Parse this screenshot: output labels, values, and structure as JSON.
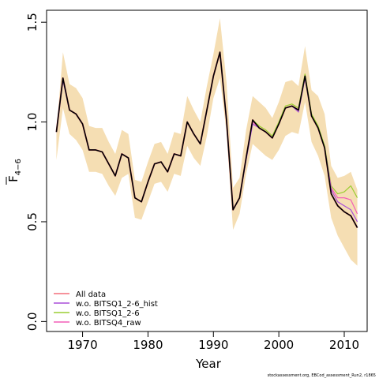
{
  "chart_data": {
    "type": "line",
    "xlabel": "Year",
    "ylabel_main": "F",
    "ylabel_sub": "4−6",
    "xlim": [
      1964.5,
      2013.5
    ],
    "ylim": [
      -0.05,
      1.56
    ],
    "x_ticks": [
      1970,
      1980,
      1990,
      2000,
      2010
    ],
    "y_ticks": [
      0.0,
      0.5,
      1.0,
      1.5
    ],
    "x_tick_labels": [
      "1970",
      "1980",
      "1990",
      "2000",
      "2010"
    ],
    "y_tick_labels": [
      "0.0",
      "0.5",
      "1.0",
      "1.5"
    ],
    "footnote": "stockassessment.org, EBCod_assessment_Run2, r1865",
    "x": [
      1966,
      1967,
      1968,
      1969,
      1970,
      1971,
      1972,
      1973,
      1974,
      1975,
      1976,
      1977,
      1978,
      1979,
      1980,
      1981,
      1982,
      1983,
      1984,
      1985,
      1986,
      1987,
      1988,
      1989,
      1990,
      1991,
      1992,
      1993,
      1994,
      1995,
      1996,
      1997,
      1998,
      1999,
      2000,
      2001,
      2002,
      2003,
      2004,
      2005,
      2006,
      2007,
      2008,
      2009,
      2010,
      2011,
      2012
    ],
    "band": {
      "color": "#f5deb3",
      "upper": [
        0.95,
        1.35,
        1.19,
        1.17,
        1.12,
        0.98,
        0.97,
        0.97,
        0.9,
        0.84,
        0.96,
        0.94,
        0.71,
        0.7,
        0.8,
        0.89,
        0.9,
        0.84,
        0.95,
        0.94,
        1.13,
        1.06,
        1.0,
        1.18,
        1.34,
        1.52,
        1.2,
        0.67,
        0.72,
        0.96,
        1.13,
        1.1,
        1.07,
        1.02,
        1.1,
        1.2,
        1.21,
        1.18,
        1.38,
        1.16,
        1.13,
        1.04,
        0.78,
        0.72,
        0.73,
        0.75,
        0.66
      ],
      "lower": [
        0.81,
        1.07,
        0.94,
        0.91,
        0.86,
        0.75,
        0.75,
        0.74,
        0.68,
        0.63,
        0.72,
        0.74,
        0.52,
        0.51,
        0.6,
        0.69,
        0.7,
        0.65,
        0.74,
        0.73,
        0.88,
        0.82,
        0.78,
        0.93,
        1.12,
        1.22,
        0.95,
        0.46,
        0.54,
        0.74,
        0.89,
        0.86,
        0.83,
        0.81,
        0.86,
        0.93,
        0.95,
        0.94,
        1.1,
        0.9,
        0.83,
        0.73,
        0.52,
        0.43,
        0.37,
        0.31,
        0.28
      ]
    },
    "series": [
      {
        "name": "All data",
        "color": "#f36e7a",
        "width": 2,
        "values": [
          0.95,
          1.22,
          1.06,
          1.04,
          0.99,
          0.86,
          0.86,
          0.85,
          0.79,
          0.73,
          0.84,
          0.82,
          0.62,
          0.6,
          0.7,
          0.79,
          0.8,
          0.75,
          0.84,
          0.83,
          1.0,
          0.94,
          0.89,
          1.06,
          1.23,
          1.35,
          1.01,
          0.56,
          0.62,
          0.82,
          1.01,
          0.97,
          0.95,
          0.92,
          0.99,
          1.07,
          1.08,
          1.06,
          1.23,
          1.03,
          0.97,
          0.87,
          0.64,
          0.58,
          0.55,
          0.53,
          0.47
        ]
      },
      {
        "name": "w.o. BITSQ1_2-6_hist",
        "color": "#a94fd9",
        "width": 1.2,
        "values": [
          0.95,
          1.21,
          1.06,
          1.04,
          0.99,
          0.86,
          0.86,
          0.85,
          0.79,
          0.73,
          0.84,
          0.82,
          0.62,
          0.6,
          0.7,
          0.79,
          0.8,
          0.75,
          0.84,
          0.83,
          1.0,
          0.94,
          0.89,
          1.06,
          1.23,
          1.35,
          1.01,
          0.56,
          0.62,
          0.81,
          0.99,
          0.97,
          0.95,
          0.92,
          0.99,
          1.07,
          1.08,
          1.05,
          1.22,
          1.03,
          0.97,
          0.87,
          0.66,
          0.6,
          0.58,
          0.56,
          0.5
        ]
      },
      {
        "name": "w.o. BITSQ1_2-6",
        "color": "#9acd32",
        "width": 1.2,
        "values": [
          0.95,
          1.22,
          1.06,
          1.04,
          0.99,
          0.86,
          0.86,
          0.85,
          0.79,
          0.73,
          0.84,
          0.82,
          0.62,
          0.6,
          0.7,
          0.79,
          0.8,
          0.75,
          0.84,
          0.83,
          1.0,
          0.94,
          0.89,
          1.06,
          1.23,
          1.35,
          1.01,
          0.56,
          0.62,
          0.82,
          1.01,
          0.98,
          0.96,
          0.93,
          1.0,
          1.08,
          1.09,
          1.07,
          1.24,
          1.04,
          0.98,
          0.88,
          0.68,
          0.64,
          0.65,
          0.68,
          0.62
        ]
      },
      {
        "name": "w.o. BITSQ4_raw",
        "color": "#f35fb8",
        "width": 1.2,
        "values": [
          0.95,
          1.22,
          1.06,
          1.04,
          0.99,
          0.86,
          0.86,
          0.85,
          0.79,
          0.73,
          0.84,
          0.82,
          0.62,
          0.6,
          0.7,
          0.79,
          0.8,
          0.75,
          0.84,
          0.83,
          1.0,
          0.94,
          0.89,
          1.06,
          1.23,
          1.35,
          1.01,
          0.56,
          0.62,
          0.82,
          1.0,
          0.97,
          0.95,
          0.92,
          0.99,
          1.07,
          1.08,
          1.06,
          1.23,
          1.03,
          0.97,
          0.87,
          0.67,
          0.62,
          0.62,
          0.61,
          0.54
        ]
      },
      {
        "name": "",
        "color": "#000000",
        "width": 1.6,
        "values": [
          0.95,
          1.22,
          1.06,
          1.04,
          0.99,
          0.86,
          0.86,
          0.85,
          0.79,
          0.73,
          0.84,
          0.82,
          0.62,
          0.6,
          0.7,
          0.79,
          0.8,
          0.75,
          0.84,
          0.83,
          1.0,
          0.94,
          0.89,
          1.06,
          1.23,
          1.35,
          1.01,
          0.56,
          0.62,
          0.82,
          1.01,
          0.97,
          0.95,
          0.92,
          0.99,
          1.07,
          1.08,
          1.06,
          1.23,
          1.03,
          0.97,
          0.87,
          0.64,
          0.58,
          0.55,
          0.53,
          0.47
        ]
      }
    ],
    "legend": {
      "placement": "bottom-left",
      "entries": [
        {
          "label": "All data",
          "color": "#f36e7a"
        },
        {
          "label": "w.o. BITSQ1_2-6_hist",
          "color": "#a94fd9"
        },
        {
          "label": "w.o. BITSQ1_2-6",
          "color": "#9acd32"
        },
        {
          "label": "w.o. BITSQ4_raw",
          "color": "#f35fb8"
        }
      ]
    }
  }
}
